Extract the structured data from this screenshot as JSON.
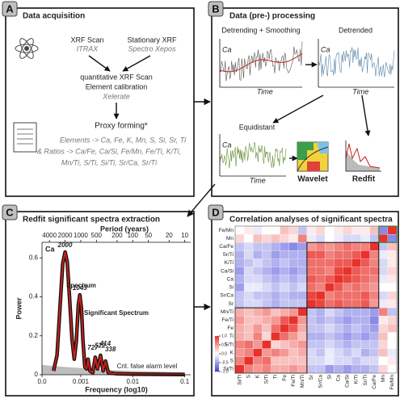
{
  "panel_a": {
    "label": "A",
    "title": "Data acquisition",
    "source_1": {
      "name": "XRF Scan",
      "device": "ITRAX"
    },
    "source_2": {
      "name": "Stationary XRF",
      "device": "Spectro Xepos"
    },
    "steps": [
      "quantitative XRF Scan",
      "Element calibration"
    ],
    "software": "Xelerate",
    "proxy_title": "Proxy forming*",
    "proxy_lines": [
      "Elements -> Ca, Fe, K, Mn, S, Si, Sr, Ti",
      "& Ratios -> Ca/Fe, Ca/Si, Fe/Mn, Fe/Ti, K/Ti,",
      "Mn/Ti, S/Ti, Si/Ti, Sr/Ca, Sr/Ti"
    ]
  },
  "panel_b": {
    "label": "B",
    "title": "Data (pre-) processing",
    "steps": [
      "Detrending + Smoothing",
      "Detrended",
      "Equidistant"
    ],
    "axis_y": "Ca",
    "axis_x": "Time",
    "methods": [
      "Wavelet",
      "Redfit"
    ]
  },
  "panel_c": {
    "label": "C",
    "title": "Redfit significant spectra extraction",
    "chart_data": {
      "type": "line",
      "subtitle": "Ca",
      "log_x": true,
      "xlabel": "Frequency (log10)",
      "ylabel": "Power",
      "top_axis_label": "Period (years)",
      "top_ticks": [
        4000,
        2000,
        1000,
        500,
        200,
        100,
        50,
        20,
        10
      ],
      "xlim": [
        0.00018,
        0.13
      ],
      "xticks": [
        {
          "value": 0.00018,
          "label": "0.0"
        },
        0.001,
        0.01,
        0.1
      ],
      "ylim": [
        0,
        0.68
      ],
      "yticks": [
        0,
        0.2,
        0.4,
        0.6
      ],
      "significant_label": "Significant Spectrum",
      "series": [
        {
          "name": "Spectrum",
          "color": "#c8201a",
          "x": [
            0.0003,
            0.00035,
            0.0004,
            0.00045,
            0.0005,
            0.00055,
            0.0006,
            0.00068,
            0.00075,
            0.00082,
            0.0009,
            0.00096,
            0.00103,
            0.0011,
            0.0012,
            0.0013,
            0.00138,
            0.0015,
            0.0017,
            0.0019,
            0.0021,
            0.0024,
            0.0027,
            0.003,
            0.0034,
            0.005,
            0.01,
            0.03,
            0.1
          ],
          "values": [
            0.02,
            0.1,
            0.35,
            0.57,
            0.63,
            0.58,
            0.42,
            0.18,
            0.08,
            0.17,
            0.36,
            0.41,
            0.34,
            0.18,
            0.04,
            0.03,
            0.08,
            0.02,
            0.01,
            0.09,
            0.03,
            0.1,
            0.02,
            0.07,
            0.01,
            0.005,
            0.003,
            0.002,
            0.001
          ]
        }
      ],
      "area": {
        "name": "Crit. false alarm level",
        "color": "#bdbdbd",
        "x": [
          0.00018,
          0.0005,
          0.001,
          0.003,
          0.01,
          0.1
        ],
        "values": [
          0.05,
          0.04,
          0.035,
          0.025,
          0.02,
          0.012
        ]
      },
      "annotations": [
        {
          "text": "2000",
          "x": 0.0005,
          "y": 0.63
        },
        {
          "text": "1043",
          "x": 0.00096,
          "y": 0.41
        },
        {
          "text": "727",
          "x": 0.00138,
          "y": 0.08
        },
        {
          "text": "522",
          "x": 0.0019,
          "y": 0.09
        },
        {
          "text": "414",
          "x": 0.0024,
          "y": 0.1
        },
        {
          "text": "338",
          "x": 0.003,
          "y": 0.07
        }
      ]
    }
  },
  "panel_d": {
    "label": "D",
    "title": "Correlation analyses of significant spectra",
    "chart_data": {
      "type": "heatmap",
      "row_labels": [
        "Fe/Mn",
        "Mn",
        "Ca/Fe",
        "Sr/Ti",
        "K/Ti",
        "Ca/Si",
        "Ca",
        "Si",
        "Sr/Ca",
        "Sr",
        "Mn/Ti",
        "Fe/Ti",
        "Fe",
        "Ti",
        "S/Ti",
        "K",
        "S",
        "Si/Ti"
      ],
      "col_labels": [
        "Si/Ti",
        "S",
        "K",
        "S/Ti",
        "Ti",
        "Fe",
        "Fe/Ti",
        "Mn/Ti",
        "Sr",
        "Sr/Ca",
        "Si",
        "Ca",
        "Ca/Si",
        "K/Ti",
        "Sr/Ti",
        "Ca/Fe",
        "Mn",
        "Fe/Mn"
      ],
      "row_label_colors": [
        "#2e8b2e",
        "#2e8b2e",
        "#2b3fb5",
        "#2b3fb5",
        "#2b3fb5",
        "#2b3fb5",
        "#2b3fb5",
        "#2b3fb5",
        "#2b3fb5",
        "#2b3fb5",
        "#8b1a1a",
        "#8b1a1a",
        "#8b1a1a",
        "#8b1a1a",
        "#8b1a1a",
        "#8b1a1a",
        "#8b1a1a",
        "#8b1a1a"
      ],
      "col_label_colors": [
        "#8b1a1a",
        "#8b1a1a",
        "#8b1a1a",
        "#8b1a1a",
        "#8b1a1a",
        "#8b1a1a",
        "#8b1a1a",
        "#8b1a1a",
        "#2b3fb5",
        "#2b3fb5",
        "#2b3fb5",
        "#2b3fb5",
        "#2b3fb5",
        "#2b3fb5",
        "#2b3fb5",
        "#2b3fb5",
        "#2e8b2e",
        "#2e8b2e"
      ],
      "low_color": "#3b3bd6",
      "mid_color": "#ffffff",
      "high_color": "#e8312a",
      "colorbar": {
        "lim": [
          -1,
          1
        ],
        "ticks": [
          {
            "value": 1,
            "label": "1.0"
          },
          {
            "value": 0.5,
            "label": "0.5"
          },
          {
            "value": 0,
            "label": "0.0"
          },
          {
            "value": -0.5,
            "label": "-0.5"
          },
          {
            "value": -1,
            "label": "-1.0"
          }
        ]
      },
      "values": [
        [
          0,
          0.1,
          -0.1,
          0,
          0,
          0.3,
          0.2,
          -0.3,
          0.1,
          0.2,
          0,
          0.1,
          0.2,
          0.1,
          0.1,
          0.3,
          -0.6,
          1
        ],
        [
          0.2,
          0,
          0.3,
          0.2,
          0.3,
          0.2,
          0.1,
          0.6,
          -0.1,
          -0.2,
          0,
          -0.1,
          -0.2,
          -0.2,
          -0.1,
          -0.3,
          1,
          -0.6
        ],
        [
          -0.3,
          -0.2,
          -0.3,
          -0.3,
          -0.4,
          -0.5,
          -0.6,
          -0.5,
          0.5,
          0.6,
          0.5,
          0.6,
          0.7,
          0.6,
          0.6,
          1,
          -0.3,
          0.3
        ],
        [
          -0.4,
          -0.2,
          -0.4,
          -0.3,
          -0.5,
          -0.4,
          -0.4,
          -0.4,
          0.8,
          0.8,
          0.6,
          0.7,
          0.7,
          0.8,
          1,
          0.6,
          -0.1,
          0.1
        ],
        [
          -0.4,
          -0.3,
          -0.2,
          -0.3,
          -0.4,
          -0.3,
          -0.4,
          -0.4,
          0.7,
          0.7,
          0.7,
          0.8,
          0.8,
          1,
          0.8,
          0.6,
          -0.2,
          0.1
        ],
        [
          -0.5,
          -0.2,
          -0.3,
          -0.4,
          -0.5,
          -0.4,
          -0.5,
          -0.4,
          0.7,
          0.7,
          0.6,
          0.9,
          1,
          0.8,
          0.7,
          0.7,
          -0.2,
          0.2
        ],
        [
          -0.4,
          -0.2,
          -0.2,
          -0.3,
          -0.4,
          -0.3,
          -0.4,
          -0.3,
          0.8,
          0.7,
          0.8,
          1,
          0.9,
          0.8,
          0.7,
          0.6,
          -0.1,
          0.1
        ],
        [
          -0.5,
          -0.1,
          -0.1,
          -0.2,
          -0.3,
          -0.2,
          -0.3,
          -0.2,
          0.7,
          0.6,
          1,
          0.8,
          0.6,
          0.7,
          0.6,
          0.5,
          0,
          0
        ],
        [
          -0.3,
          -0.2,
          -0.3,
          -0.3,
          -0.4,
          -0.3,
          -0.4,
          -0.4,
          0.9,
          1,
          0.6,
          0.7,
          0.7,
          0.7,
          0.8,
          0.6,
          -0.2,
          0.2
        ],
        [
          -0.3,
          -0.2,
          -0.2,
          -0.3,
          -0.4,
          -0.3,
          -0.3,
          -0.3,
          1,
          0.9,
          0.7,
          0.8,
          0.7,
          0.7,
          0.8,
          0.5,
          -0.1,
          0.1
        ],
        [
          0.4,
          0.3,
          0.4,
          0.5,
          0.3,
          0.4,
          0.5,
          1,
          -0.3,
          -0.4,
          -0.2,
          -0.3,
          -0.4,
          -0.4,
          -0.4,
          -0.5,
          0.6,
          -0.3
        ],
        [
          0.5,
          0.3,
          0.3,
          0.4,
          0.5,
          0.8,
          1,
          0.5,
          -0.3,
          -0.4,
          -0.3,
          -0.4,
          -0.5,
          -0.4,
          -0.4,
          -0.6,
          0.1,
          0.2
        ],
        [
          0.4,
          0.3,
          0.5,
          0.3,
          0.7,
          1,
          0.8,
          0.4,
          -0.3,
          -0.3,
          -0.2,
          -0.3,
          -0.4,
          -0.3,
          -0.4,
          -0.5,
          0.2,
          0.3
        ],
        [
          0.4,
          0.3,
          0.6,
          0.2,
          1,
          0.7,
          0.5,
          0.3,
          -0.4,
          -0.4,
          -0.3,
          -0.4,
          -0.5,
          -0.4,
          -0.5,
          -0.4,
          0.3,
          0
        ],
        [
          0.6,
          0.7,
          0.5,
          1,
          0.2,
          0.3,
          0.4,
          0.5,
          -0.3,
          -0.3,
          -0.2,
          -0.3,
          -0.4,
          -0.3,
          -0.3,
          -0.3,
          0.2,
          0
        ],
        [
          0.5,
          0.6,
          1,
          0.5,
          0.6,
          0.5,
          0.3,
          0.4,
          -0.2,
          -0.3,
          -0.1,
          -0.2,
          -0.3,
          -0.2,
          -0.4,
          -0.3,
          0.3,
          -0.1
        ],
        [
          0.6,
          1,
          0.6,
          0.7,
          0.3,
          0.3,
          0.3,
          0.3,
          -0.2,
          -0.2,
          -0.1,
          -0.2,
          -0.2,
          -0.3,
          -0.2,
          -0.2,
          0,
          0.1
        ],
        [
          1,
          0.6,
          0.5,
          0.6,
          0.4,
          0.4,
          0.5,
          0.4,
          -0.3,
          -0.3,
          -0.5,
          -0.4,
          -0.5,
          -0.4,
          -0.4,
          -0.3,
          0.2,
          0
        ]
      ]
    }
  }
}
